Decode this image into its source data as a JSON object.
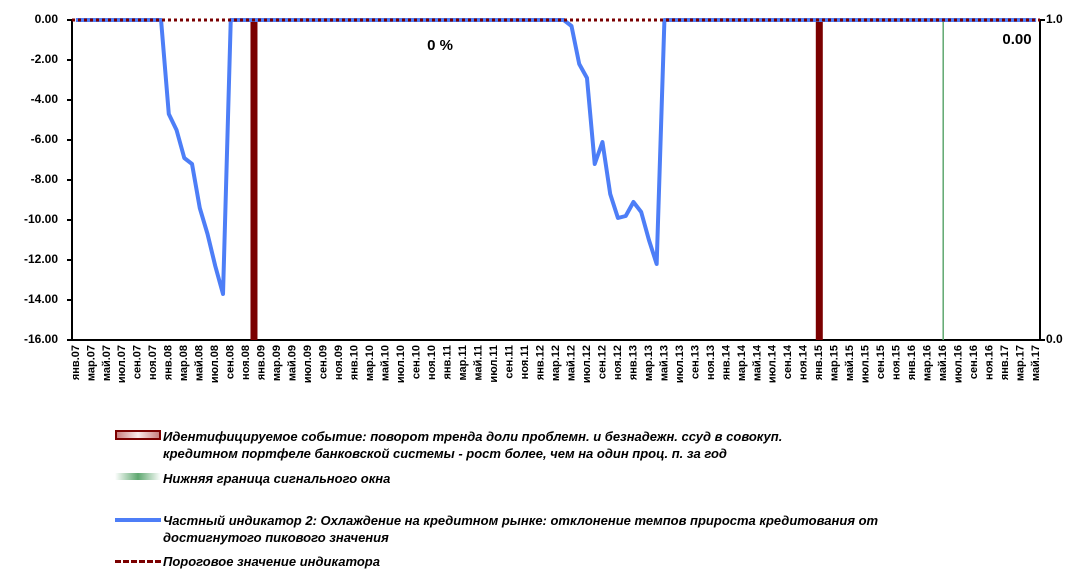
{
  "chart_data": {
    "type": "line",
    "categories": [
      "янв.07",
      null,
      "мар.07",
      null,
      "май.07",
      null,
      "июл.07",
      null,
      "сен.07",
      null,
      "ноя.07",
      null,
      "янв.08",
      null,
      "мар.08",
      null,
      "май.08",
      null,
      "июл.08",
      null,
      "сен.08",
      null,
      "ноя.08",
      null,
      "янв.09",
      null,
      "мар.09",
      null,
      "май.09",
      null,
      "июл.09",
      null,
      "сен.09",
      null,
      "ноя.09",
      null,
      "янв.10",
      null,
      "мар.10",
      null,
      "май.10",
      null,
      "июл.10",
      null,
      "сен.10",
      null,
      "ноя.10",
      null,
      "янв.11",
      null,
      "мар.11",
      null,
      "май.11",
      null,
      "июл.11",
      null,
      "сен.11",
      null,
      "ноя.11",
      null,
      "янв.12",
      null,
      "мар.12",
      null,
      "май.12",
      null,
      "июл.12",
      null,
      "сен.12",
      null,
      "ноя.12",
      null,
      "янв.13",
      null,
      "мар.13",
      null,
      "май.13",
      null,
      "июл.13",
      null,
      "сен.13",
      null,
      "ноя.13",
      null,
      "янв.14",
      null,
      "мар.14",
      null,
      "май.14",
      null,
      "июл.14",
      null,
      "сен.14",
      null,
      "ноя.14",
      null,
      "янв.15",
      null,
      "мар.15",
      null,
      "май.15",
      null,
      "июл.15",
      null,
      "сен.15",
      null,
      "ноя.15",
      null,
      "янв.16",
      null,
      "мар.16",
      null,
      "май.16",
      null,
      "июл.16",
      null,
      "сен.16",
      null,
      "ноя.16",
      null,
      "янв.17",
      null,
      "мар.17",
      null,
      "май.17"
    ],
    "series": [
      {
        "name": "Идентифицируемое событие: поворот тренда доли проблемн. и безнадежн. ссуд в совокуп. кредитном портфеле банковской системы - рост более, чем на один проц. п. за год",
        "type": "bar",
        "axis": "y2",
        "color": "#7b0000",
        "values": [
          0,
          0,
          0,
          0,
          0,
          0,
          0,
          0,
          0,
          0,
          0,
          0,
          0,
          0,
          0,
          0,
          0,
          0,
          0,
          0,
          0,
          0,
          0,
          1,
          0,
          0,
          0,
          0,
          0,
          0,
          0,
          0,
          0,
          0,
          0,
          0,
          0,
          0,
          0,
          0,
          0,
          0,
          0,
          0,
          0,
          0,
          0,
          0,
          0,
          0,
          0,
          0,
          0,
          0,
          0,
          0,
          0,
          0,
          0,
          0,
          0,
          0,
          0,
          0,
          0,
          0,
          0,
          0,
          0,
          0,
          0,
          0,
          0,
          0,
          0,
          0,
          0,
          0,
          0,
          0,
          0,
          0,
          0,
          0,
          0,
          0,
          0,
          0,
          0,
          0,
          0,
          0,
          0,
          0,
          0,
          0,
          1,
          0,
          0,
          0,
          0,
          0,
          0,
          0,
          0,
          0,
          0,
          0,
          0,
          0,
          0,
          0,
          0,
          0,
          0,
          0,
          0,
          0,
          0,
          0,
          0,
          0,
          0,
          0,
          0
        ]
      },
      {
        "name": "Нижняя граница сигнального окна",
        "type": "vline",
        "axis": "y2",
        "color": "#5fa870",
        "values": [
          0,
          0,
          0,
          0,
          0,
          0,
          0,
          0,
          0,
          0,
          0,
          0,
          0,
          0,
          0,
          0,
          0,
          0,
          0,
          0,
          0,
          0,
          0,
          0,
          0,
          0,
          0,
          0,
          0,
          0,
          0,
          0,
          0,
          0,
          0,
          0,
          0,
          0,
          0,
          0,
          0,
          0,
          0,
          0,
          0,
          0,
          0,
          0,
          0,
          0,
          0,
          0,
          0,
          0,
          0,
          0,
          0,
          0,
          0,
          0,
          0,
          0,
          0,
          0,
          0,
          0,
          0,
          0,
          0,
          0,
          0,
          0,
          0,
          0,
          0,
          0,
          0,
          0,
          0,
          0,
          0,
          0,
          0,
          0,
          0,
          0,
          0,
          0,
          0,
          0,
          0,
          0,
          0,
          0,
          0,
          0,
          0,
          0,
          0,
          0,
          0,
          0,
          0,
          0,
          0,
          0,
          0,
          0,
          0,
          0,
          0,
          0,
          1,
          0,
          0,
          0,
          0,
          0,
          0,
          0,
          0,
          0,
          0,
          0,
          0
        ]
      },
      {
        "name": "Частный индикатор 2: Охлаждение на кредитном рынке: отклонение темпов прироста кредитования от достигнутого пикового значения",
        "type": "line",
        "color": "#4d7ef7",
        "values": [
          0,
          0,
          0,
          0,
          0,
          0,
          0,
          0,
          0,
          0,
          0,
          0,
          -4.7,
          -5.5,
          -6.9,
          -7.2,
          -9.4,
          -10.7,
          -12.3,
          -13.7,
          0,
          0,
          0,
          0,
          0,
          0,
          0,
          0,
          0,
          0,
          0,
          0,
          0,
          0,
          0,
          0,
          0,
          0,
          0,
          0,
          0,
          0,
          0,
          0,
          0,
          0,
          0,
          0,
          0,
          0,
          0,
          0,
          0,
          0,
          0,
          0,
          0,
          0,
          0,
          0,
          0,
          0,
          0,
          0,
          -0.3,
          -2.2,
          -2.9,
          -7.2,
          -6.1,
          -8.7,
          -9.9,
          -9.8,
          -9.1,
          -9.6,
          -11.0,
          -12.2,
          0,
          0,
          0,
          0,
          0,
          0,
          0,
          0,
          0,
          0,
          0,
          0,
          0,
          0,
          0,
          0,
          0,
          0,
          0,
          0,
          0,
          0,
          0,
          0,
          0,
          0,
          0,
          0,
          0,
          0,
          0,
          0,
          0,
          0,
          0,
          0,
          0,
          0,
          0,
          0,
          0,
          0,
          0,
          0,
          0,
          0,
          0,
          0,
          0
        ]
      },
      {
        "name": "Пороговое значение индикатора",
        "type": "hline",
        "color": "#7b0000",
        "value": 0
      }
    ],
    "annotations": [
      {
        "text": "0 %",
        "color": "#993300"
      },
      {
        "text": "0.00",
        "color": "#4d7ef7"
      }
    ],
    "ylim": [
      -16,
      0
    ],
    "yticks": [
      {
        "value": -16,
        "label": "-16.00"
      },
      {
        "value": -14,
        "label": "-14.00"
      },
      {
        "value": -12,
        "label": "-12.00"
      },
      {
        "value": -10,
        "label": "-10.00"
      },
      {
        "value": -8,
        "label": "-8.00"
      },
      {
        "value": -6,
        "label": "-6.00"
      },
      {
        "value": -4,
        "label": "-4.00"
      },
      {
        "value": -2,
        "label": "-2.00"
      },
      {
        "value": 0,
        "label": "0.00"
      }
    ],
    "y2lim": [
      0,
      1
    ],
    "y2ticks": [
      {
        "value": 0,
        "label": "0.0"
      },
      {
        "value": 1,
        "label": "1.0"
      }
    ]
  }
}
